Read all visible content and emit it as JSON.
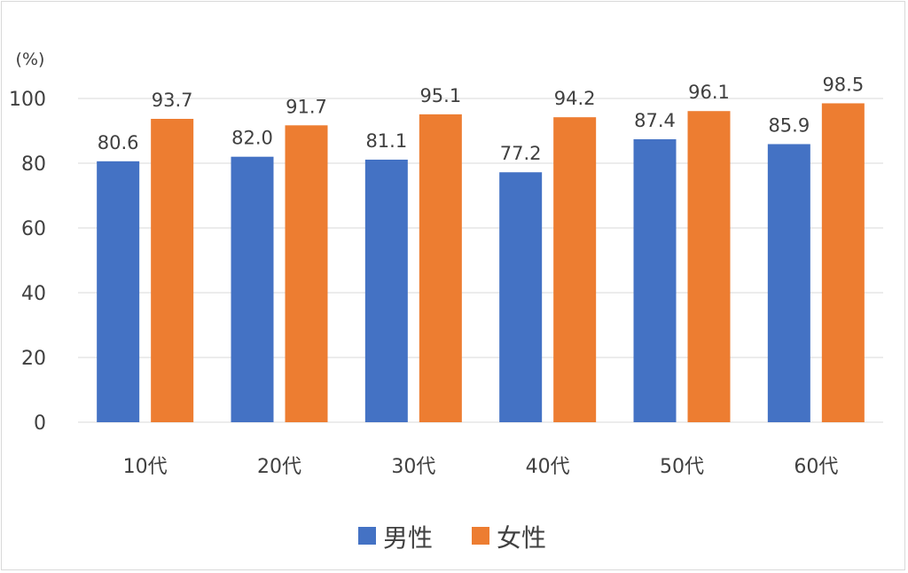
{
  "chart_data": {
    "type": "bar",
    "y_unit": "(%)",
    "categories": [
      "10代",
      "20代",
      "30代",
      "40代",
      "50代",
      "60代"
    ],
    "series": [
      {
        "name": "男性",
        "color": "#4472c4",
        "values": [
          80.6,
          82.0,
          81.1,
          77.2,
          87.4,
          85.9
        ]
      },
      {
        "name": "女性",
        "color": "#ed7d31",
        "values": [
          93.7,
          91.7,
          95.1,
          94.2,
          96.1,
          98.5
        ]
      }
    ],
    "ylim": [
      0,
      100
    ],
    "yticks": [
      0,
      20,
      40,
      60,
      80,
      100
    ],
    "grid": true,
    "legend_position": "bottom"
  }
}
